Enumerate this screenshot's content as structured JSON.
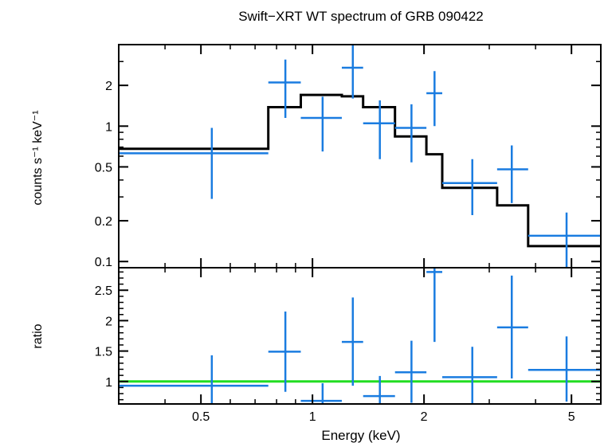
{
  "chart_data": {
    "type": "scatter",
    "title": "Swift−XRT WT spectrum of GRB 090422",
    "xlabel": "Energy (keV)",
    "x_scale": "log",
    "xlim": [
      0.3,
      6.0
    ],
    "x_ticks": [
      {
        "value": 0.5,
        "label": "0.5"
      },
      {
        "value": 1,
        "label": "1"
      },
      {
        "value": 2,
        "label": "2"
      },
      {
        "value": 5,
        "label": "5"
      }
    ],
    "panels": [
      {
        "id": "spectrum",
        "ylabel": "counts s⁻¹ keV⁻¹",
        "y_scale": "log",
        "ylim": [
          0.09,
          4.0
        ],
        "y_ticks": [
          {
            "value": 0.1,
            "label": "0.1"
          },
          {
            "value": 0.2,
            "label": "0.2"
          },
          {
            "value": 0.5,
            "label": "0.5"
          },
          {
            "value": 1,
            "label": "1"
          },
          {
            "value": 2,
            "label": "2"
          }
        ],
        "data_color": "#1a7ce0",
        "model_color": "#000000",
        "points": [
          {
            "x_lo": 0.3,
            "x_hi": 0.76,
            "x": 0.535,
            "y": 0.63,
            "y_lo": 0.29,
            "y_hi": 0.97
          },
          {
            "x_lo": 0.76,
            "x_hi": 0.93,
            "x": 0.845,
            "y": 2.1,
            "y_lo": 1.15,
            "y_hi": 3.1
          },
          {
            "x_lo": 0.93,
            "x_hi": 1.2,
            "x": 1.065,
            "y": 1.15,
            "y_lo": 0.65,
            "y_hi": 1.65
          },
          {
            "x_lo": 1.2,
            "x_hi": 1.37,
            "x": 1.285,
            "y": 2.7,
            "y_lo": 1.6,
            "y_hi": 4.0
          },
          {
            "x_lo": 1.37,
            "x_hi": 1.67,
            "x": 1.52,
            "y": 1.05,
            "y_lo": 0.57,
            "y_hi": 1.55
          },
          {
            "x_lo": 1.67,
            "x_hi": 2.03,
            "x": 1.85,
            "y": 0.97,
            "y_lo": 0.54,
            "y_hi": 1.45
          },
          {
            "x_lo": 2.03,
            "x_hi": 2.24,
            "x": 2.135,
            "y": 1.75,
            "y_lo": 1.0,
            "y_hi": 2.55
          },
          {
            "x_lo": 2.24,
            "x_hi": 3.15,
            "x": 2.7,
            "y": 0.38,
            "y_lo": 0.22,
            "y_hi": 0.57
          },
          {
            "x_lo": 3.15,
            "x_hi": 3.82,
            "x": 3.45,
            "y": 0.48,
            "y_lo": 0.27,
            "y_hi": 0.72
          },
          {
            "x_lo": 3.82,
            "x_hi": 6.0,
            "x": 4.85,
            "y": 0.155,
            "y_lo": 0.088,
            "y_hi": 0.23
          }
        ],
        "model_steps": [
          {
            "x_lo": 0.3,
            "x_hi": 0.76,
            "y": 0.68
          },
          {
            "x_lo": 0.76,
            "x_hi": 0.93,
            "y": 1.38
          },
          {
            "x_lo": 0.93,
            "x_hi": 1.2,
            "y": 1.7
          },
          {
            "x_lo": 1.2,
            "x_hi": 1.37,
            "y": 1.66
          },
          {
            "x_lo": 1.37,
            "x_hi": 1.67,
            "y": 1.38
          },
          {
            "x_lo": 1.67,
            "x_hi": 2.03,
            "y": 0.84
          },
          {
            "x_lo": 2.03,
            "x_hi": 2.24,
            "y": 0.62
          },
          {
            "x_lo": 2.24,
            "x_hi": 3.15,
            "y": 0.35
          },
          {
            "x_lo": 3.15,
            "x_hi": 3.82,
            "y": 0.26
          },
          {
            "x_lo": 3.82,
            "x_hi": 6.0,
            "y": 0.13
          }
        ]
      },
      {
        "id": "ratio",
        "ylabel": "ratio",
        "y_scale": "linear",
        "ylim": [
          0.63,
          2.87
        ],
        "y_ticks": [
          {
            "value": 1,
            "label": "1"
          },
          {
            "value": 1.5,
            "label": "1.5"
          },
          {
            "value": 2,
            "label": "2"
          },
          {
            "value": 2.5,
            "label": "2.5"
          }
        ],
        "data_color": "#1a7ce0",
        "reference_line": {
          "y": 1.0,
          "color": "#22dd22"
        },
        "points": [
          {
            "x_lo": 0.3,
            "x_hi": 0.76,
            "x": 0.535,
            "y": 0.93,
            "y_lo": 0.43,
            "y_hi": 1.43
          },
          {
            "x_lo": 0.76,
            "x_hi": 0.93,
            "x": 0.845,
            "y": 1.49,
            "y_lo": 0.83,
            "y_hi": 2.15
          },
          {
            "x_lo": 0.93,
            "x_hi": 1.2,
            "x": 1.065,
            "y": 0.68,
            "y_lo": 0.63,
            "y_hi": 0.97
          },
          {
            "x_lo": 1.2,
            "x_hi": 1.37,
            "x": 1.285,
            "y": 1.65,
            "y_lo": 0.93,
            "y_hi": 2.38
          },
          {
            "x_lo": 1.37,
            "x_hi": 1.67,
            "x": 1.52,
            "y": 0.76,
            "y_lo": 0.63,
            "y_hi": 1.09
          },
          {
            "x_lo": 1.67,
            "x_hi": 2.03,
            "x": 1.85,
            "y": 1.15,
            "y_lo": 0.65,
            "y_hi": 1.67
          },
          {
            "x_lo": 2.03,
            "x_hi": 2.24,
            "x": 2.135,
            "y": 2.8,
            "y_lo": 1.65,
            "y_hi": 2.87
          },
          {
            "x_lo": 2.24,
            "x_hi": 3.15,
            "x": 2.7,
            "y": 1.07,
            "y_lo": 0.63,
            "y_hi": 1.57
          },
          {
            "x_lo": 3.15,
            "x_hi": 3.82,
            "x": 3.45,
            "y": 1.89,
            "y_lo": 1.05,
            "y_hi": 2.74
          },
          {
            "x_lo": 3.82,
            "x_hi": 6.0,
            "x": 4.85,
            "y": 1.19,
            "y_lo": 0.67,
            "y_hi": 1.74
          }
        ]
      }
    ]
  }
}
